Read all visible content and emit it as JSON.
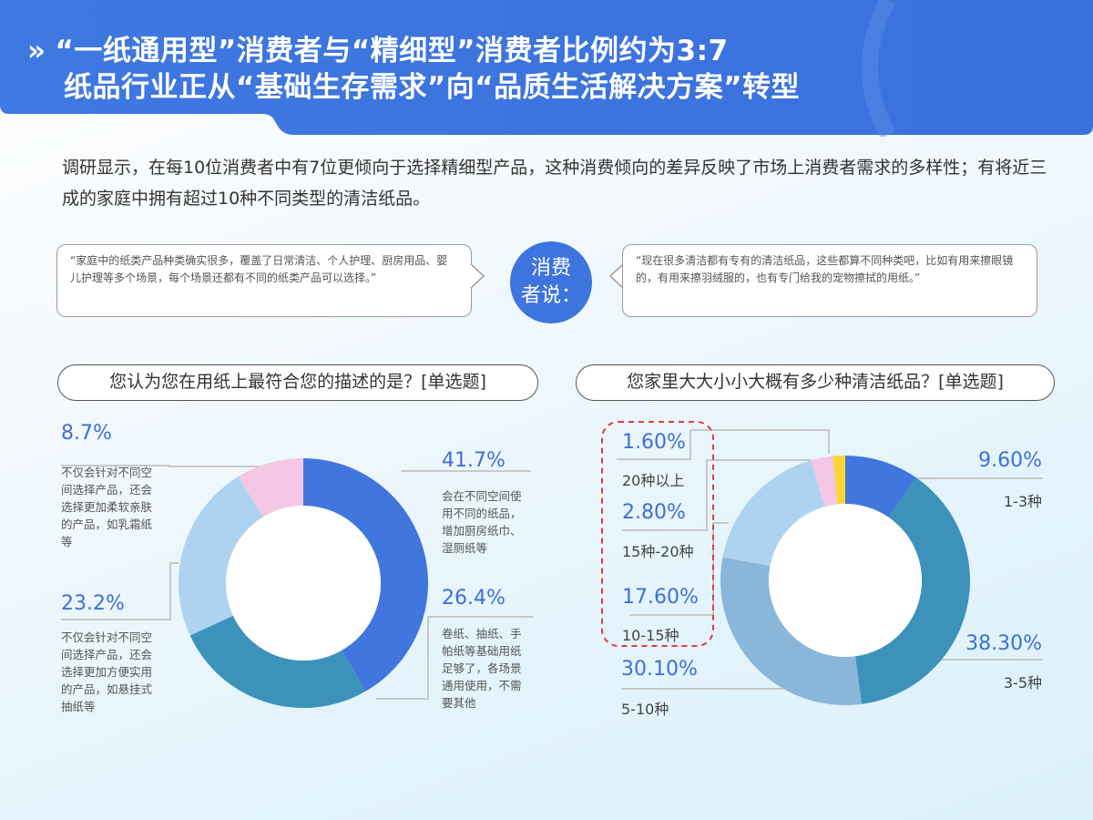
{
  "header": {
    "title_line1": "“一纸通用型”消费者与“精细型”消费者比例约为3:7",
    "title_line2": "纸品行业正从“基础生存需求”向“品质生活解决方案”转型",
    "chevron_icon": "»",
    "bg_color": "#3e74de"
  },
  "intro": {
    "text": "调研显示，在每10位消费者中有7位更倾向于选择精细型产品，这种消费倾向的差异反映了市场上消费者需求的多样性；有将近三成的家庭中拥有超过10种不同类型的清洁纸品。"
  },
  "consumer_says": {
    "badge_line1": "消费",
    "badge_line2": "者说：",
    "quote_left": "“家庭中的纸类产品种类确实很多，覆盖了日常清洁、个人护理、厨房用品、婴儿护理等多个场景，每个场景还都有不同的纸类产品可以选择。”",
    "quote_right": "“现在很多清洁都有专有的清洁纸品，这些都算不同种类吧，比如有用来擦眼镜的，有用来擦羽绒服的，也有专门给我的宠物擦拭的用纸。”"
  },
  "left_chart": {
    "question": "您认为您在用纸上最符合您的描述的是？[单选题]",
    "labels": [
      {
        "pct": "41.7%",
        "desc": "会在不同空间使用不同的纸品，增加厨房纸巾、湿厕纸等"
      },
      {
        "pct": "26.4%",
        "desc": "卷纸、抽纸、手帕纸等基础用纸足够了，各场景通用使用，不需要其他"
      },
      {
        "pct": "23.2%",
        "desc": "不仅会针对不同空间选择产品，还会选择更加方便实用的产品，如悬挂式抽纸等"
      },
      {
        "pct": "8.7%",
        "desc": "不仅会针对不同空间选择产品，还会选择更加柔软亲肤的产品，如乳霜纸等"
      }
    ]
  },
  "right_chart": {
    "question": "您家里大大小小大概有多少种清洁纸品？[单选题]",
    "labels": [
      {
        "pct": "9.60%",
        "cat": "1-3种"
      },
      {
        "pct": "38.30%",
        "cat": "3-5种"
      },
      {
        "pct": "30.10%",
        "cat": "5-10种"
      },
      {
        "pct": "17.60%",
        "cat": "10-15种"
      },
      {
        "pct": "2.80%",
        "cat": "15种-20种"
      },
      {
        "pct": "1.60%",
        "cat": "20种以上"
      }
    ],
    "highlight_color": "#e03c3c"
  },
  "chart_data": [
    {
      "type": "pie",
      "title": "您认为您在用纸上最符合您的描述的是？[单选题]",
      "categories": [
        "会在不同空间使用不同的纸品，增加厨房纸巾、湿厕纸等",
        "卷纸、抽纸、手帕纸等基础用纸足够了，各场景通用使用，不需要其他",
        "不仅会针对不同空间选择产品，还会选择更加方便实用的产品，如悬挂式抽纸等",
        "不仅会针对不同空间选择产品，还会选择更加柔软亲肤的产品，如乳霜纸等"
      ],
      "values": [
        41.7,
        26.4,
        23.2,
        8.7
      ],
      "colors": [
        "#4176de",
        "#3c92bb",
        "#aed3f1",
        "#f3c7e3"
      ],
      "unit": "%",
      "donut": true
    },
    {
      "type": "pie",
      "title": "您家里大大小小大概有多少种清洁纸品？[单选题]",
      "categories": [
        "1-3种",
        "3-5种",
        "5-10种",
        "10-15种",
        "15种-20种",
        "20种以上"
      ],
      "values": [
        9.6,
        38.3,
        30.1,
        17.6,
        2.8,
        1.6
      ],
      "colors": [
        "#4176de",
        "#3c92bb",
        "#8ab6da",
        "#aed3f1",
        "#f3c7e3",
        "#fdd535"
      ],
      "unit": "%",
      "donut": true,
      "annotation": "10种以上 (1.60% + 2.80% + 17.60%) highlighted with red dashed box"
    }
  ]
}
